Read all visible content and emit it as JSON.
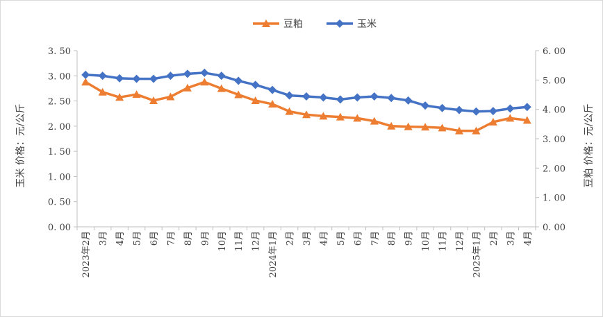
{
  "chart_data": {
    "type": "line",
    "categories": [
      "2023年2月",
      "3月",
      "4月",
      "5月",
      "6月",
      "7月",
      "8月",
      "9月",
      "10月",
      "11月",
      "12月",
      "2024年1月",
      "2月",
      "3月",
      "4月",
      "5月",
      "6月",
      "7月",
      "8月",
      "9月",
      "10月",
      "11月",
      "12月",
      "2025年1月",
      "2月",
      "3月",
      "4月"
    ],
    "series": [
      {
        "name": "豆粕",
        "axis": "right",
        "color": "#ED7D31",
        "marker": "triangle",
        "values": [
          4.93,
          4.59,
          4.41,
          4.51,
          4.3,
          4.43,
          4.73,
          4.93,
          4.71,
          4.5,
          4.3,
          4.18,
          3.93,
          3.82,
          3.77,
          3.74,
          3.7,
          3.6,
          3.43,
          3.41,
          3.4,
          3.37,
          3.27,
          3.27,
          3.57,
          3.7,
          3.63
        ]
      },
      {
        "name": "玉米",
        "axis": "left",
        "color": "#4472C4",
        "marker": "diamond",
        "values": [
          3.02,
          3.0,
          2.95,
          2.94,
          2.94,
          3.0,
          3.04,
          3.06,
          3.0,
          2.9,
          2.82,
          2.72,
          2.61,
          2.59,
          2.57,
          2.53,
          2.57,
          2.59,
          2.56,
          2.51,
          2.41,
          2.36,
          2.32,
          2.29,
          2.3,
          2.35,
          2.38
        ]
      }
    ],
    "y_left": {
      "min": 0,
      "max": 3.5,
      "step": 0.5,
      "label": "玉米  价格：元/公斤",
      "tick_format": "0.00-spaced"
    },
    "y_right": {
      "min": 0,
      "max": 6.0,
      "step": 1.0,
      "label": "豆粕  价格：元/公斤"
    },
    "legend": {
      "position": "top-center"
    },
    "grid": false,
    "tick_labels_left": [
      "0. 00",
      "0. 50",
      "1. 00",
      "1. 50",
      "2. 00",
      "2. 50",
      "3. 00",
      "3. 50"
    ],
    "tick_labels_right": [
      "0. 00",
      "1. 00",
      "2. 00",
      "3. 00",
      "4. 00",
      "5. 00",
      "6. 00"
    ]
  }
}
